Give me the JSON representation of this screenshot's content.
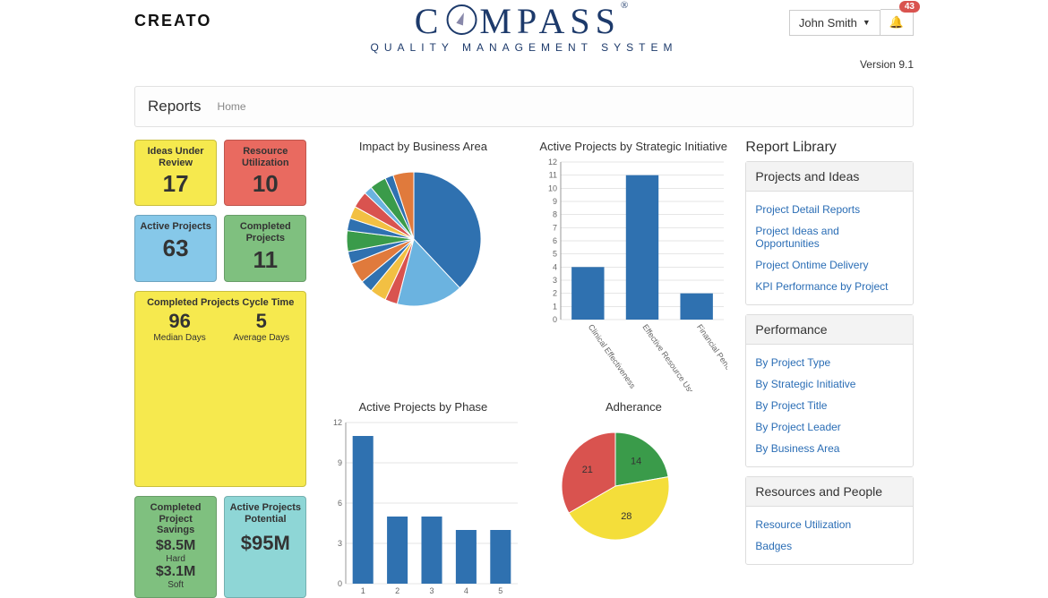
{
  "header": {
    "brand": "CREATO",
    "logo_top_pre": "C",
    "logo_top_post": "MPASS",
    "logo_reg": "®",
    "logo_sub": "QUALITY MANAGEMENT SYSTEM",
    "user_name": "John Smith",
    "notification_count": "43",
    "version": "Version 9.1"
  },
  "breadcrumb": {
    "title": "Reports",
    "home": "Home"
  },
  "kpis": {
    "ideas_under_review": {
      "title": "Ideas Under Review",
      "value": "17",
      "color": "yellow"
    },
    "resource_utilization": {
      "title": "Resource Utilization",
      "value": "10",
      "color": "red"
    },
    "active_projects": {
      "title": "Active Projects",
      "value": "63",
      "color": "blue"
    },
    "completed_projects": {
      "title": "Completed Projects",
      "value": "11",
      "color": "green"
    },
    "cycle_time": {
      "title": "Completed Projects Cycle Time",
      "median_value": "96",
      "median_label": "Median Days",
      "average_value": "5",
      "average_label": "Average Days",
      "color": "yellow"
    },
    "savings": {
      "title": "Completed Project Savings",
      "hard_value": "$8.5M",
      "hard_label": "Hard",
      "soft_value": "$3.1M",
      "soft_label": "Soft",
      "color": "green"
    },
    "potential": {
      "title": "Active Projects Potential",
      "value": "$95M",
      "color": "teal"
    }
  },
  "impact_pie": {
    "title": "Impact by Business Area",
    "type": "pie",
    "slices": [
      {
        "value": 38,
        "color": "#2f71b0"
      },
      {
        "value": 16,
        "color": "#6bb3e0"
      },
      {
        "value": 3,
        "color": "#d9534f"
      },
      {
        "value": 4,
        "color": "#f2c043"
      },
      {
        "value": 3,
        "color": "#2f71b0"
      },
      {
        "value": 5,
        "color": "#e07a3c"
      },
      {
        "value": 3,
        "color": "#2f71b0"
      },
      {
        "value": 5,
        "color": "#3a9b4a"
      },
      {
        "value": 3,
        "color": "#2f71b0"
      },
      {
        "value": 3,
        "color": "#f2c043"
      },
      {
        "value": 4,
        "color": "#d9534f"
      },
      {
        "value": 2,
        "color": "#6bb3e0"
      },
      {
        "value": 4,
        "color": "#3a9b4a"
      },
      {
        "value": 2,
        "color": "#2f71b0"
      },
      {
        "value": 5,
        "color": "#e07a3c"
      }
    ]
  },
  "strategic_bar": {
    "title": "Active Projects by Strategic Initiative",
    "type": "bar",
    "ylim": [
      0,
      12
    ],
    "ytick_step": 1,
    "categories": [
      "Clinical Effectiveness",
      "Effective Resource Use",
      "Financial Performance"
    ],
    "values": [
      4,
      11,
      2
    ],
    "bar_color": "#2f71b0",
    "grid_color": "#cccccc"
  },
  "phase_bar": {
    "title": "Active Projects by Phase",
    "type": "bar",
    "ylim": [
      0,
      12
    ],
    "ytick_step": 3,
    "categories": [
      "1",
      "2",
      "3",
      "4",
      "5"
    ],
    "values": [
      11,
      5,
      5,
      4,
      4
    ],
    "bar_color": "#2f71b0",
    "grid_color": "#cccccc"
  },
  "adherence_pie": {
    "title": "Adherance",
    "type": "pie",
    "slices": [
      {
        "value": 14,
        "label": "14",
        "color": "#3a9b4a"
      },
      {
        "value": 28,
        "label": "28",
        "color": "#f4de3a"
      },
      {
        "value": 21,
        "label": "21",
        "color": "#d9534f"
      }
    ]
  },
  "library": {
    "heading": "Report Library",
    "groups": [
      {
        "title": "Projects and Ideas",
        "links": [
          "Project Detail Reports",
          "Project Ideas and Opportunities",
          "Project Ontime Delivery",
          "KPI Performance by Project"
        ]
      },
      {
        "title": "Performance",
        "links": [
          "By Project Type",
          "By Strategic Initiative",
          "By Project Title",
          "By Project Leader",
          "By Business Area"
        ]
      },
      {
        "title": "Resources and People",
        "links": [
          "Resource Utilization",
          "Badges"
        ]
      }
    ]
  }
}
